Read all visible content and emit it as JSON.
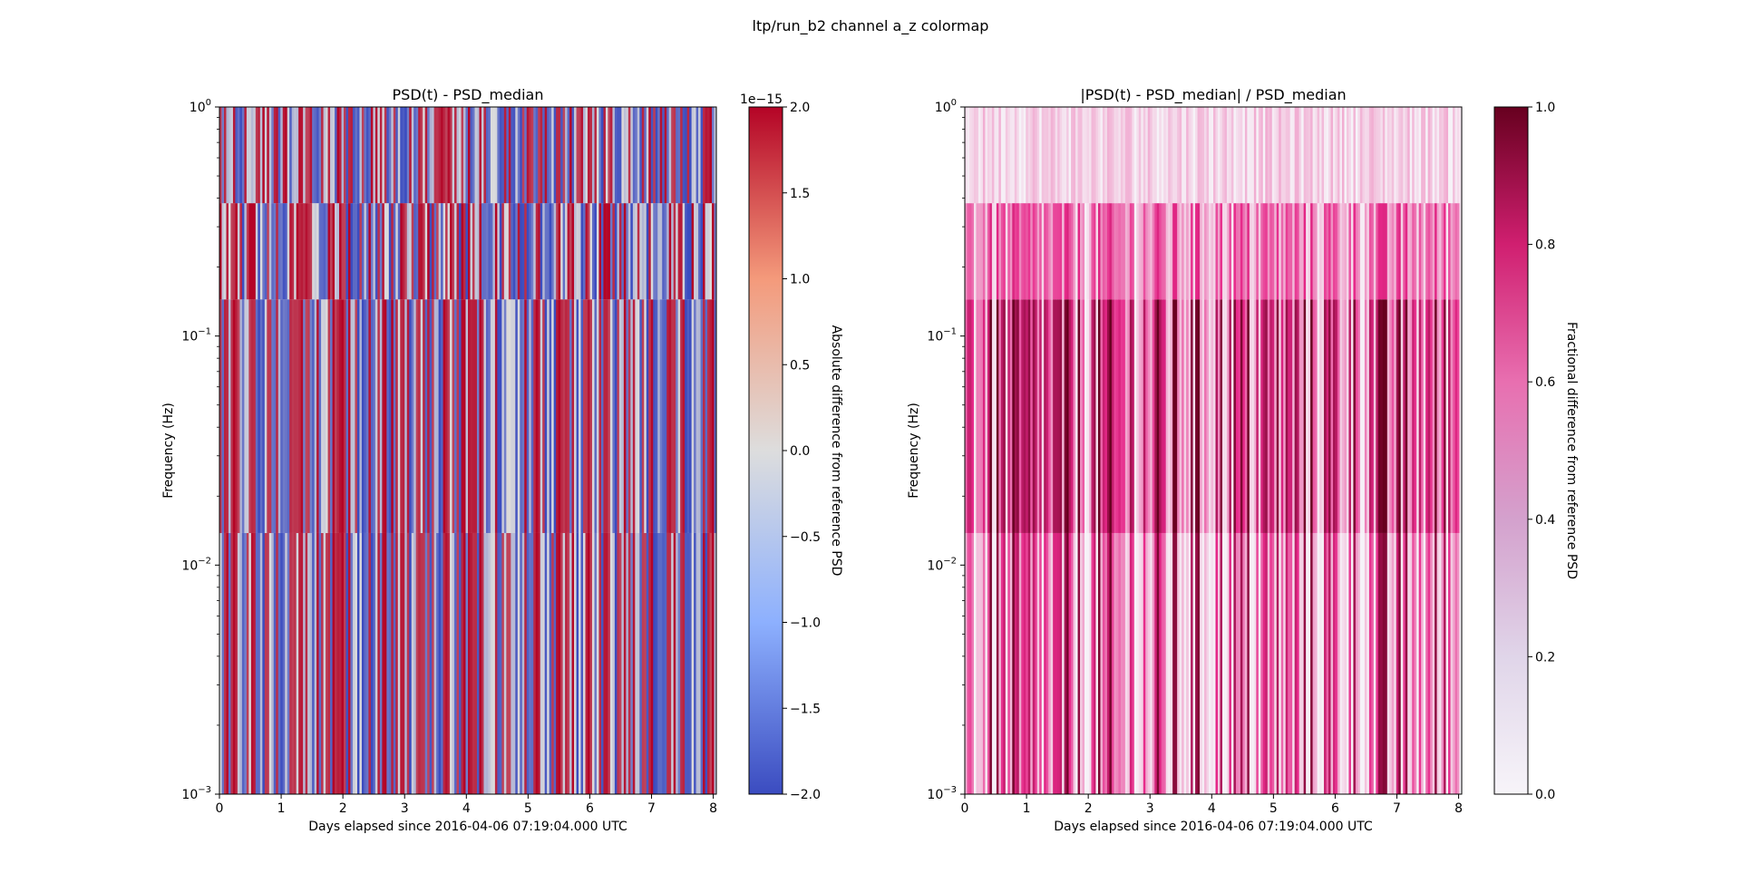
{
  "figure": {
    "title": "ltp/run_b2 channel a_z colormap"
  },
  "chart_data": [
    {
      "type": "heatmap",
      "title": "PSD(t) - PSD_median",
      "xlabel": "Days elapsed since 2016-04-06 07:19:04.000 UTC",
      "ylabel": "Frequency (Hz)",
      "xlim": [
        0,
        8.05
      ],
      "ylim": [
        0.001,
        1
      ],
      "yscale": "log",
      "x_ticks": [
        "0",
        "1",
        "2",
        "3",
        "4",
        "5",
        "6",
        "7",
        "8"
      ],
      "y_ticks": [
        "10",
        "10",
        "10",
        "10"
      ],
      "y_tick_exponents": [
        "−3",
        "−2",
        "−1",
        "0"
      ],
      "colormap": "coolwarm",
      "colors": {
        "low": "#3b4cc0",
        "mid": "#dddddd",
        "high": "#b40426"
      },
      "colorbar": {
        "label": "Absolute difference from reference PSD",
        "range": [
          -2.0,
          2.0
        ],
        "scale_note": "1e−15",
        "ticks": [
          "2.0",
          "1.5",
          "1.0",
          "0.5",
          "0.0",
          "−0.5",
          "−1.0",
          "−1.5",
          "−2.0"
        ]
      }
    },
    {
      "type": "heatmap",
      "title": "|PSD(t) - PSD_median| / PSD_median",
      "xlabel": "Days elapsed since 2016-04-06 07:19:04.000 UTC",
      "ylabel": "Frequency (Hz)",
      "xlim": [
        0,
        8.05
      ],
      "ylim": [
        0.001,
        1
      ],
      "yscale": "log",
      "x_ticks": [
        "0",
        "1",
        "2",
        "3",
        "4",
        "5",
        "6",
        "7",
        "8"
      ],
      "y_ticks": [
        "10",
        "10",
        "10",
        "10"
      ],
      "y_tick_exponents": [
        "−3",
        "−2",
        "−1",
        "0"
      ],
      "colormap": "PuRd",
      "colors": {
        "low": "#f7f4f9",
        "mid": "#e7298a",
        "high": "#67001f"
      },
      "colorbar": {
        "label": "Fractional difference from reference PSD",
        "range": [
          0.0,
          1.0
        ],
        "ticks": [
          "1.0",
          "0.8",
          "0.6",
          "0.4",
          "0.2",
          "0.0"
        ]
      }
    }
  ]
}
